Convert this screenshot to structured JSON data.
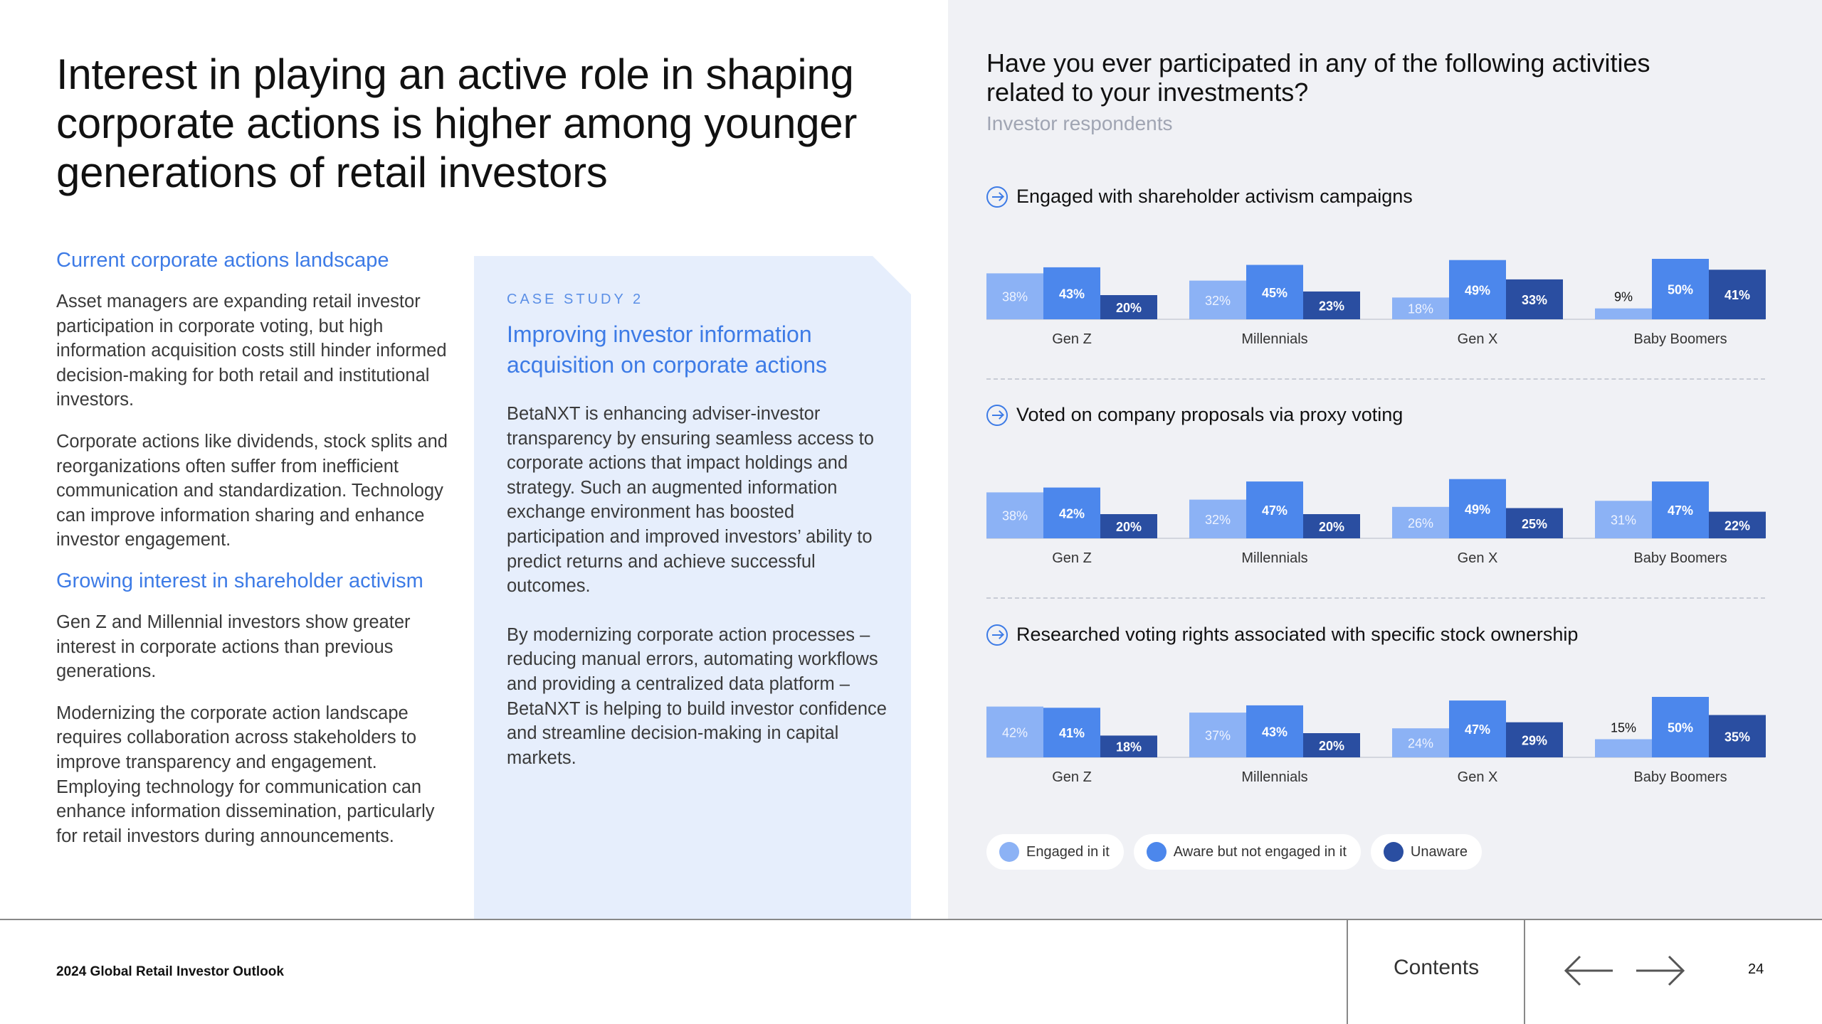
{
  "title": "Interest in playing an active role in shaping corporate actions is higher among younger generations of retail investors",
  "left_column": {
    "section1_heading": "Current corporate actions landscape",
    "section1_p1": "Asset managers are expanding retail investor participation in corporate voting, but high information acquisition costs still hinder informed decision-making for both retail and institutional investors.",
    "section1_p2": "Corporate actions like dividends, stock splits and reorganizations often suffer from inefficient communication and standardization. Technology can improve information sharing and enhance investor engagement.",
    "section2_heading": "Growing interest in shareholder activism",
    "section2_p1": "Gen Z and Millennial investors show greater interest in corporate actions than previous generations.",
    "section2_p2": "Modernizing the corporate action landscape requires collaboration across stakeholders to improve transparency and engagement. Employing technology for communication can enhance information dissemination, particularly for retail investors during announcements."
  },
  "case_study": {
    "label": "CASE STUDY 2",
    "title": "Improving investor information acquisition on corporate actions",
    "p1": "BetaNXT is enhancing adviser-investor transparency by ensuring seamless access to corporate actions that impact holdings and strategy. Such an augmented information exchange environment has boosted participation and improved investors’ ability to predict returns and achieve successful outcomes.",
    "p2": "By modernizing corporate action processes – reducing manual errors, automating workflows and providing a centralized data platform – BetaNXT is helping to build investor confidence and streamline decision-making in capital markets."
  },
  "chart_header": {
    "title": "Have you ever participated in any of the following activities related to your investments?",
    "subtitle": "Investor respondents"
  },
  "chart_data": [
    {
      "type": "bar",
      "title": "Engaged with shareholder activism campaigns",
      "categories": [
        "Gen Z",
        "Millennials",
        "Gen X",
        "Baby Boomers"
      ],
      "series": [
        {
          "name": "Engaged in it",
          "values": [
            38,
            32,
            18,
            9
          ],
          "color": "#8cb2f5"
        },
        {
          "name": "Aware but not engaged in it",
          "values": [
            43,
            45,
            49,
            50
          ],
          "color": "#4c87ec"
        },
        {
          "name": "Unaware",
          "values": [
            20,
            23,
            33,
            41
          ],
          "color": "#2a4ea1"
        }
      ]
    },
    {
      "type": "bar",
      "title": "Voted on company proposals via proxy voting",
      "categories": [
        "Gen Z",
        "Millennials",
        "Gen X",
        "Baby Boomers"
      ],
      "series": [
        {
          "name": "Engaged in it",
          "values": [
            38,
            32,
            26,
            31
          ],
          "color": "#8cb2f5"
        },
        {
          "name": "Aware but not engaged in it",
          "values": [
            42,
            47,
            49,
            47
          ],
          "color": "#4c87ec"
        },
        {
          "name": "Unaware",
          "values": [
            20,
            20,
            25,
            22
          ],
          "color": "#2a4ea1"
        }
      ]
    },
    {
      "type": "bar",
      "title": "Researched voting rights associated with specific stock ownership",
      "categories": [
        "Gen Z",
        "Millennials",
        "Gen X",
        "Baby Boomers"
      ],
      "series": [
        {
          "name": "Engaged in it",
          "values": [
            42,
            37,
            24,
            15
          ],
          "color": "#8cb2f5"
        },
        {
          "name": "Aware but not engaged in it",
          "values": [
            41,
            43,
            47,
            50
          ],
          "color": "#4c87ec"
        },
        {
          "name": "Unaware",
          "values": [
            18,
            20,
            29,
            35
          ],
          "color": "#2a4ea1"
        }
      ]
    }
  ],
  "legend": [
    {
      "label": "Engaged in it",
      "color": "#8cb2f5"
    },
    {
      "label": "Aware but not engaged in it",
      "color": "#4c87ec"
    },
    {
      "label": "Unaware",
      "color": "#2a4ea1"
    }
  ],
  "footer": {
    "report_name": "2024 Global Retail Investor Outlook",
    "contents_label": "Contents",
    "page_number": "24",
    "prev_icon": "arrow-left-icon",
    "next_icon": "arrow-right-icon"
  }
}
